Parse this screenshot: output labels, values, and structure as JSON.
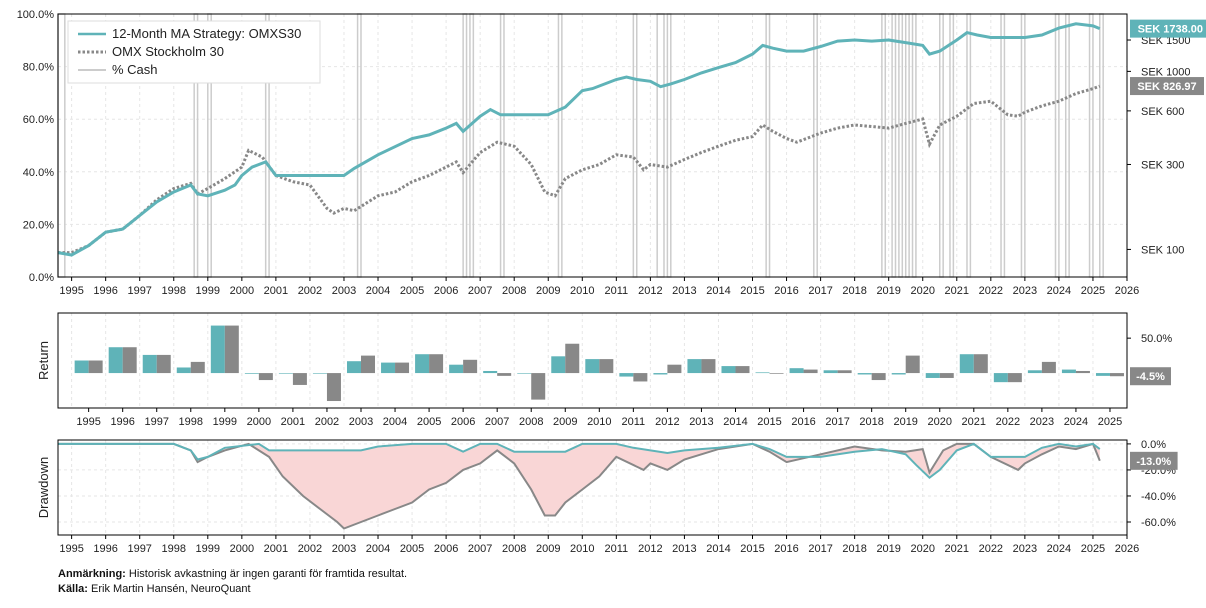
{
  "colors": {
    "strategy": "#5fb3b8",
    "index": "#888888",
    "cash": "#cccccc",
    "drawdown_fill": "#f9d6d6",
    "grid": "#e6e6e6"
  },
  "footnote": {
    "note_label": "Anmärkning:",
    "note_text": "Historisk avkastning är ingen garanti för framtida resultat.",
    "source_label": "Källa:",
    "source_text": "Erik Martin Hansén, NeuroQuant"
  },
  "chart_data": [
    {
      "id": "equity",
      "type": "line",
      "title": "",
      "legend": [
        "12-Month MA Strategy: OMXS30",
        "OMX Stockholm 30",
        "% Cash"
      ],
      "legend_position": "top-left",
      "xlim": [
        1994.6,
        2026.0
      ],
      "x_ticks": [
        "1995",
        "1996",
        "1997",
        "1998",
        "1999",
        "2000",
        "2001",
        "2002",
        "2003",
        "2004",
        "2005",
        "2006",
        "2007",
        "2008",
        "2009",
        "2010",
        "2011",
        "2012",
        "2013",
        "2014",
        "2015",
        "2016",
        "2017",
        "2018",
        "2019",
        "2020",
        "2021",
        "2022",
        "2023",
        "2024",
        "2025",
        "2026"
      ],
      "left_axis": {
        "label": "% Cash",
        "range": [
          0,
          100
        ],
        "ticks": [
          "0.0%",
          "20.0%",
          "40.0%",
          "60.0%",
          "80.0%",
          "100.0%"
        ]
      },
      "right_axis": {
        "scale": "log",
        "range": [
          70,
          2100
        ],
        "ticks": [
          {
            "label": "SEK 100",
            "value": 100
          },
          {
            "label": "SEK 300",
            "value": 300
          },
          {
            "label": "SEK 600",
            "value": 600
          },
          {
            "label": "SEK 1000",
            "value": 1000
          },
          {
            "label": "SEK 1500",
            "value": 1500
          }
        ]
      },
      "series": [
        {
          "name": "12-Month MA Strategy: OMXS30",
          "end_label": "SEK 1738.00",
          "x": [
            1994.6,
            1995.0,
            1995.5,
            1996.0,
            1996.5,
            1997.0,
            1997.5,
            1998.0,
            1998.5,
            1998.7,
            1999.0,
            1999.5,
            1999.8,
            2000.0,
            2000.3,
            2000.7,
            2001.0,
            2002.0,
            2003.0,
            2003.3,
            2004.0,
            2005.0,
            2005.5,
            2006.0,
            2006.3,
            2006.5,
            2007.0,
            2007.3,
            2007.6,
            2008.0,
            2009.0,
            2009.5,
            2010.0,
            2010.3,
            2011.0,
            2011.3,
            2011.6,
            2012.0,
            2012.3,
            2012.6,
            2013.0,
            2013.5,
            2014.0,
            2014.5,
            2015.0,
            2015.3,
            2015.6,
            2016.0,
            2016.5,
            2017.0,
            2017.5,
            2018.0,
            2018.5,
            2019.0,
            2019.5,
            2020.0,
            2020.2,
            2020.5,
            2021.0,
            2021.3,
            2021.6,
            2022.0,
            2023.0,
            2023.5,
            2024.0,
            2024.5,
            2025.0,
            2025.2
          ],
          "values": [
            96,
            93,
            105,
            125,
            130,
            155,
            185,
            210,
            230,
            205,
            200,
            215,
            230,
            260,
            290,
            310,
            260,
            260,
            260,
            285,
            340,
            420,
            440,
            480,
            510,
            460,
            560,
            610,
            570,
            570,
            570,
            630,
            780,
            800,
            900,
            930,
            900,
            880,
            820,
            850,
            900,
            980,
            1050,
            1120,
            1250,
            1400,
            1350,
            1300,
            1300,
            1380,
            1480,
            1500,
            1480,
            1500,
            1450,
            1400,
            1250,
            1300,
            1500,
            1650,
            1600,
            1550,
            1550,
            1600,
            1750,
            1850,
            1800,
            1738
          ]
        },
        {
          "name": "OMX Stockholm 30",
          "end_label": "SEK 826.97",
          "x": [
            1994.6,
            1995.0,
            1995.5,
            1996.0,
            1996.5,
            1997.0,
            1997.5,
            1998.0,
            1998.5,
            1998.7,
            1999.0,
            1999.5,
            2000.0,
            2000.2,
            2000.6,
            2001.0,
            2001.5,
            2002.0,
            2002.5,
            2002.7,
            2003.0,
            2003.3,
            2004.0,
            2004.5,
            2005.0,
            2005.5,
            2006.0,
            2006.3,
            2006.5,
            2007.0,
            2007.5,
            2008.0,
            2008.5,
            2008.9,
            2009.2,
            2009.5,
            2010.0,
            2010.5,
            2011.0,
            2011.5,
            2011.8,
            2012.0,
            2012.5,
            2013.0,
            2013.5,
            2014.0,
            2014.5,
            2015.0,
            2015.3,
            2015.6,
            2016.0,
            2016.3,
            2017.0,
            2017.5,
            2018.0,
            2018.5,
            2019.0,
            2019.5,
            2020.0,
            2020.2,
            2020.5,
            2021.0,
            2021.5,
            2022.0,
            2022.5,
            2022.8,
            2023.0,
            2023.5,
            2024.0,
            2024.5,
            2025.0,
            2025.2
          ],
          "values": [
            96,
            96,
            105,
            125,
            130,
            155,
            190,
            220,
            235,
            205,
            220,
            250,
            290,
            360,
            330,
            260,
            240,
            230,
            170,
            160,
            170,
            165,
            200,
            210,
            240,
            260,
            290,
            310,
            270,
            350,
            400,
            380,
            300,
            210,
            200,
            250,
            280,
            300,
            340,
            330,
            280,
            300,
            290,
            320,
            350,
            380,
            410,
            430,
            500,
            460,
            420,
            400,
            450,
            480,
            500,
            490,
            480,
            510,
            540,
            390,
            500,
            560,
            660,
            680,
            570,
            560,
            590,
            640,
            680,
            750,
            800,
            827
          ]
        },
        {
          "name": "% Cash",
          "periods": [
            [
              1994.6,
              1994.8
            ],
            [
              1998.6,
              1998.7
            ],
            [
              1999.0,
              1999.1
            ],
            [
              2000.7,
              2000.8
            ],
            [
              2003.4,
              2003.5
            ],
            [
              2006.5,
              2006.6
            ],
            [
              2006.7,
              2006.8
            ],
            [
              2007.6,
              2007.7
            ],
            [
              2009.3,
              2009.4
            ],
            [
              2011.5,
              2011.6
            ],
            [
              2012.2,
              2012.4
            ],
            [
              2012.5,
              2012.6
            ],
            [
              2015.4,
              2015.5
            ],
            [
              2016.8,
              2016.9
            ],
            [
              2018.8,
              2018.9
            ],
            [
              2019.1,
              2019.2
            ],
            [
              2019.3,
              2019.4
            ],
            [
              2019.5,
              2019.6
            ],
            [
              2019.7,
              2019.8
            ],
            [
              2020.5,
              2020.6
            ],
            [
              2020.8,
              2020.9
            ],
            [
              2021.3,
              2021.4
            ],
            [
              2022.3,
              2022.4
            ],
            [
              2022.9,
              2023.0
            ],
            [
              2023.9,
              2024.0
            ],
            [
              2024.2,
              2024.3
            ],
            [
              2024.9,
              2025.0
            ],
            [
              2025.2,
              2025.3
            ]
          ]
        }
      ]
    },
    {
      "id": "returns",
      "type": "bar",
      "ylabel": "Return",
      "categories": [
        "1995",
        "1996",
        "1997",
        "1998",
        "1999",
        "2000",
        "2001",
        "2002",
        "2003",
        "2004",
        "2005",
        "2006",
        "2007",
        "2008",
        "2009",
        "2010",
        "2011",
        "2012",
        "2013",
        "2014",
        "2015",
        "2016",
        "2017",
        "2018",
        "2019",
        "2020",
        "2021",
        "2022",
        "2023",
        "2024",
        "2025"
      ],
      "y_ticks": [
        {
          "label": "50.0%",
          "value": 50
        }
      ],
      "ylim": [
        -50,
        86
      ],
      "end_label": "-4.5%",
      "series": [
        {
          "name": "12-Month MA Strategy: OMXS30",
          "values": [
            18,
            37,
            26,
            8,
            68,
            -1,
            0,
            0,
            17,
            15,
            27,
            12,
            3,
            0,
            24,
            20,
            -5,
            -2,
            20,
            10,
            1,
            7,
            4,
            -2,
            -2,
            -7,
            27,
            -13,
            4,
            5,
            -4
          ]
        },
        {
          "name": "OMX Stockholm 30",
          "values": [
            18,
            37,
            26,
            16,
            68,
            -10,
            -17,
            -40,
            25,
            15,
            27,
            19,
            -4,
            -38,
            42,
            20,
            -12,
            12,
            20,
            10,
            -1,
            5,
            4,
            -10,
            25,
            -7,
            27,
            -13,
            16,
            3,
            -4.5
          ]
        }
      ]
    },
    {
      "id": "drawdown",
      "type": "area",
      "ylabel": "Drawdown",
      "y_ticks": [
        {
          "label": "0.0%",
          "value": 0
        },
        {
          "label": "-20.0%",
          "value": -20
        },
        {
          "label": "-40.0%",
          "value": -40
        },
        {
          "label": "-60.0%",
          "value": -60
        }
      ],
      "ylim": [
        -70,
        3
      ],
      "end_label": "-13.0%",
      "series": [
        {
          "name": "12-Month MA Strategy: OMXS30",
          "x": [
            1994.6,
            1996.0,
            1998.0,
            1998.5,
            1998.7,
            1999.0,
            1999.5,
            2000.5,
            2000.8,
            2003.5,
            2004.0,
            2005.0,
            2006.0,
            2006.5,
            2007.0,
            2007.5,
            2008.0,
            2009.5,
            2010.0,
            2011.0,
            2011.5,
            2012.0,
            2012.5,
            2013.0,
            2014.0,
            2015.0,
            2015.5,
            2016.0,
            2017.0,
            2018.0,
            2018.8,
            2019.5,
            2019.8,
            2020.2,
            2020.5,
            2021.0,
            2021.5,
            2022.0,
            2023.0,
            2023.5,
            2024.0,
            2024.5,
            2025.0,
            2025.2
          ],
          "values": [
            0,
            0,
            0,
            -5,
            -12,
            -10,
            -3,
            0,
            -5,
            -5,
            -2,
            0,
            0,
            -6,
            0,
            0,
            -6,
            -6,
            0,
            0,
            -3,
            -5,
            -7,
            -5,
            -3,
            0,
            -4,
            -10,
            -10,
            -6,
            -4,
            -8,
            -16,
            -26,
            -20,
            -5,
            0,
            -10,
            -10,
            -3,
            0,
            -2,
            0,
            -4
          ]
        },
        {
          "name": "OMX Stockholm 30",
          "x": [
            1994.6,
            1996.0,
            1998.0,
            1998.5,
            1998.7,
            1999.0,
            1999.5,
            2000.2,
            2000.8,
            2001.2,
            2001.8,
            2002.3,
            2002.8,
            2003.0,
            2003.5,
            2004.0,
            2004.5,
            2005.0,
            2005.5,
            2006.0,
            2006.5,
            2007.0,
            2007.5,
            2008.0,
            2008.5,
            2008.9,
            2009.2,
            2009.5,
            2010.0,
            2010.5,
            2011.0,
            2011.8,
            2012.0,
            2012.5,
            2013.0,
            2013.5,
            2014.0,
            2015.0,
            2015.5,
            2016.0,
            2017.0,
            2018.0,
            2018.8,
            2019.5,
            2020.0,
            2020.2,
            2020.6,
            2021.0,
            2021.5,
            2022.0,
            2022.8,
            2023.0,
            2023.5,
            2024.0,
            2024.5,
            2025.0,
            2025.2
          ],
          "values": [
            0,
            0,
            0,
            -5,
            -14,
            -10,
            -5,
            0,
            -10,
            -25,
            -40,
            -50,
            -60,
            -65,
            -60,
            -55,
            -50,
            -45,
            -35,
            -30,
            -20,
            -15,
            -5,
            -15,
            -35,
            -55,
            -55,
            -45,
            -35,
            -25,
            -10,
            -20,
            -15,
            -20,
            -12,
            -8,
            -4,
            0,
            -6,
            -14,
            -8,
            -2,
            -5,
            -6,
            -4,
            -22,
            -5,
            0,
            0,
            -10,
            -20,
            -15,
            -8,
            -2,
            -4,
            0,
            -13
          ]
        }
      ]
    }
  ]
}
